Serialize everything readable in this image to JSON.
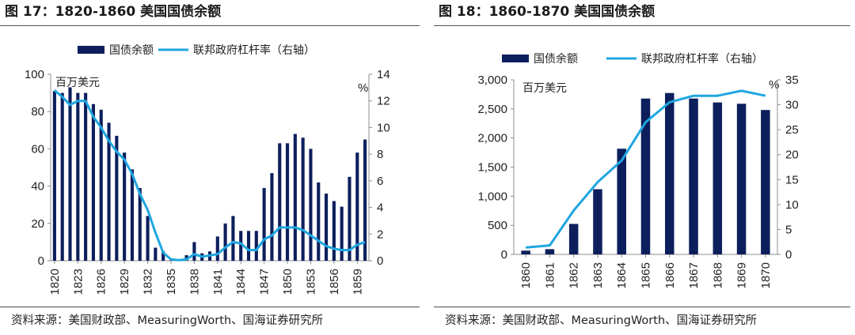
{
  "colors": {
    "bar": "#0c1f5c",
    "line": "#1fa6e0",
    "rule": "#4d4d4d"
  },
  "chart_data": [
    {
      "type": "bar+line",
      "title": "图 17：1820-1860 美国国债余额",
      "source": "资料来源：美国财政部、MeasuringWorth、国海证券研究所",
      "left_axis_unit": "百万美元",
      "right_axis_unit": "%",
      "legend": [
        "国债余额",
        "联邦政府杠杆率（右轴）"
      ],
      "categories": [
        "1820",
        "1821",
        "1822",
        "1823",
        "1824",
        "1825",
        "1826",
        "1827",
        "1828",
        "1829",
        "1830",
        "1831",
        "1832",
        "1833",
        "1834",
        "1835",
        "1836",
        "1837",
        "1838",
        "1839",
        "1840",
        "1841",
        "1842",
        "1843",
        "1844",
        "1845",
        "1846",
        "1847",
        "1848",
        "1849",
        "1850",
        "1851",
        "1852",
        "1853",
        "1854",
        "1855",
        "1856",
        "1857",
        "1858",
        "1859",
        "1860"
      ],
      "tick_labels": [
        "1820",
        "1823",
        "1826",
        "1829",
        "1832",
        "1835",
        "1838",
        "1841",
        "1844",
        "1847",
        "1850",
        "1853",
        "1856",
        "1859"
      ],
      "series": [
        {
          "name": "国债余额",
          "axis": "left",
          "type": "bar",
          "values": [
            91,
            90,
            93,
            90,
            90,
            84,
            81,
            74,
            67,
            58,
            49,
            39,
            24,
            7,
            5,
            0.3,
            0.3,
            3,
            10,
            4,
            5,
            13,
            20,
            24,
            16,
            16,
            16,
            39,
            47,
            63,
            63,
            68,
            66,
            60,
            42,
            36,
            32,
            29,
            45,
            58,
            65
          ]
        },
        {
          "name": "联邦政府杠杆率（右轴）",
          "axis": "right",
          "type": "line",
          "values": [
            12.8,
            12.3,
            11.7,
            12.0,
            12.0,
            10.8,
            10.0,
            9.0,
            8.2,
            7.6,
            6.5,
            5.0,
            3.8,
            2.1,
            0.6,
            0.1,
            0.05,
            0.1,
            0.5,
            0.3,
            0.4,
            0.5,
            1.0,
            1.4,
            1.3,
            0.8,
            0.8,
            1.6,
            1.9,
            2.5,
            2.5,
            2.5,
            2.3,
            1.9,
            1.5,
            1.1,
            0.9,
            0.8,
            0.8,
            1.2,
            1.4
          ]
        }
      ],
      "ylim_left": [
        0,
        100
      ],
      "yticks_left": [
        0,
        20,
        40,
        60,
        80,
        100
      ],
      "ylim_right": [
        0,
        14
      ],
      "yticks_right": [
        0,
        2,
        4,
        6,
        8,
        10,
        12,
        14
      ]
    },
    {
      "type": "bar+line",
      "title": "图 18：1860-1870 美国国债余额",
      "source": "资料来源：美国财政部、MeasuringWorth、国海证券研究所",
      "left_axis_unit": "百万美元",
      "right_axis_unit": "%",
      "legend": [
        "国债余额",
        "联邦政府杠杆率（右轴）"
      ],
      "categories": [
        "1860",
        "1861",
        "1862",
        "1863",
        "1864",
        "1865",
        "1866",
        "1867",
        "1868",
        "1869",
        "1870"
      ],
      "tick_labels": [
        "1860",
        "1861",
        "1862",
        "1863",
        "1864",
        "1865",
        "1866",
        "1867",
        "1868",
        "1869",
        "1870"
      ],
      "series": [
        {
          "name": "国债余额",
          "axis": "left",
          "type": "bar",
          "values": [
            65,
            90,
            524,
            1120,
            1816,
            2678,
            2773,
            2678,
            2611,
            2588,
            2481
          ]
        },
        {
          "name": "联邦政府杠杆率（右轴）",
          "axis": "right",
          "type": "line",
          "values": [
            1.4,
            1.8,
            8.8,
            14.5,
            18.8,
            26.5,
            30.5,
            31.8,
            31.8,
            32.8,
            31.8
          ]
        }
      ],
      "ylim_left": [
        0,
        3000
      ],
      "yticks_left": [
        "0",
        "500",
        "1,000",
        "1,500",
        "2,000",
        "2,500",
        "3,000"
      ],
      "ylim_right": [
        0,
        35
      ],
      "yticks_right": [
        0,
        5,
        10,
        15,
        20,
        25,
        30,
        35
      ]
    }
  ]
}
